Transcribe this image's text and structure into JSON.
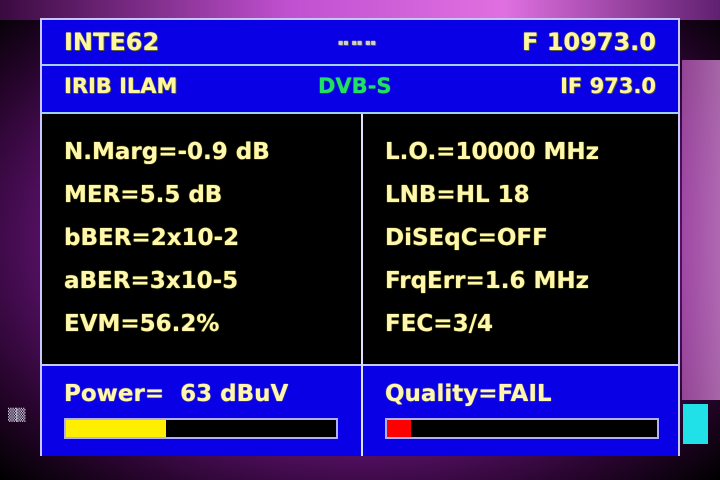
{
  "header": {
    "satellite": "INTE62",
    "indicator": "▪▪ ▪▪ ▪▪",
    "frequency": "F 10973.0"
  },
  "subheader": {
    "channel": "IRIB ILAM",
    "standard": "DVB-S",
    "if_freq": "IF 973.0"
  },
  "left_params": [
    "N.Marg=-0.9 dB",
    "MER=5.5 dB",
    "bBER=2x10-2",
    "aBER=3x10-5",
    "EVM=56.2%"
  ],
  "right_params": [
    "L.O.=10000 MHz",
    "LNB=HL 18",
    "DiSEqC=OFF",
    "FrqErr=1.6 MHz",
    "FEC=3/4"
  ],
  "power": {
    "label": "Power=  63 dBuV",
    "level_percent": 37,
    "color": "#ffee00"
  },
  "quality": {
    "label": "Quality=FAIL",
    "level_percent": 9,
    "color": "#ff0000"
  },
  "colors": {
    "panel": "#0a00e6",
    "standard_text": "#22e060"
  }
}
